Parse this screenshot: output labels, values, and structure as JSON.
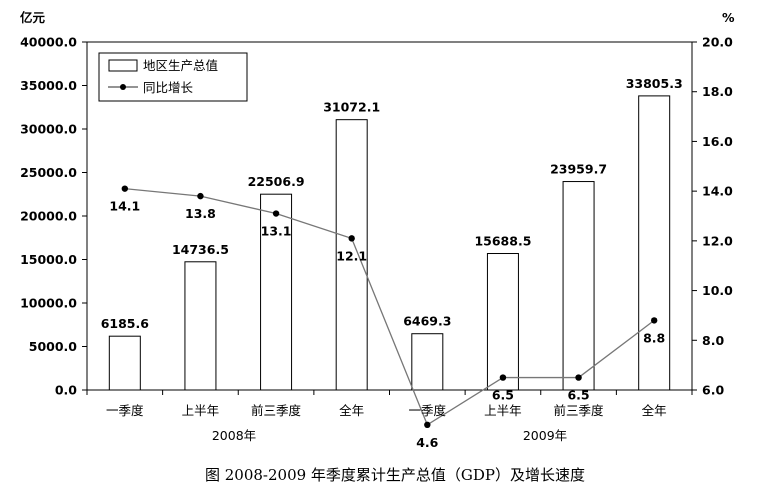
{
  "chart_data": {
    "type": "bar+line",
    "title": "图  2008-2009 年季度累计生产总值（GDP）及增长速度",
    "y_left_unit": "亿元",
    "y_right_unit": "%",
    "ylim_left": [
      0,
      40000
    ],
    "ylim_right": [
      6,
      20
    ],
    "y_left_ticks": [
      "0.0",
      "5000.0",
      "10000.0",
      "15000.0",
      "20000.0",
      "25000.0",
      "30000.0",
      "35000.0",
      "40000.0"
    ],
    "y_right_ticks": [
      "6.0",
      "8.0",
      "10.0",
      "12.0",
      "14.0",
      "16.0",
      "18.0",
      "20.0"
    ],
    "categories": [
      "一季度",
      "上半年",
      "前三季度",
      "全年",
      "一季度",
      "上半年",
      "前三季度",
      "全年"
    ],
    "groups": [
      "2008年",
      "2009年"
    ],
    "legend_position": "top-left",
    "series": [
      {
        "name": "地区生产总值",
        "type": "bar",
        "axis": "left",
        "values": [
          6185.6,
          14736.5,
          22506.9,
          31072.1,
          6469.3,
          15688.5,
          23959.7,
          33805.3
        ],
        "labels": [
          "6185.6",
          "14736.5",
          "22506.9",
          "31072.1",
          "6469.3",
          "15688.5",
          "23959.7",
          "33805.3"
        ]
      },
      {
        "name": "同比增长",
        "type": "line",
        "axis": "right",
        "values": [
          14.1,
          13.8,
          13.1,
          12.1,
          4.6,
          6.5,
          6.5,
          8.8
        ],
        "labels": [
          "14.1",
          "13.8",
          "13.1",
          "12.1",
          "4.6",
          "6.5",
          "6.5",
          "8.8"
        ]
      }
    ]
  }
}
